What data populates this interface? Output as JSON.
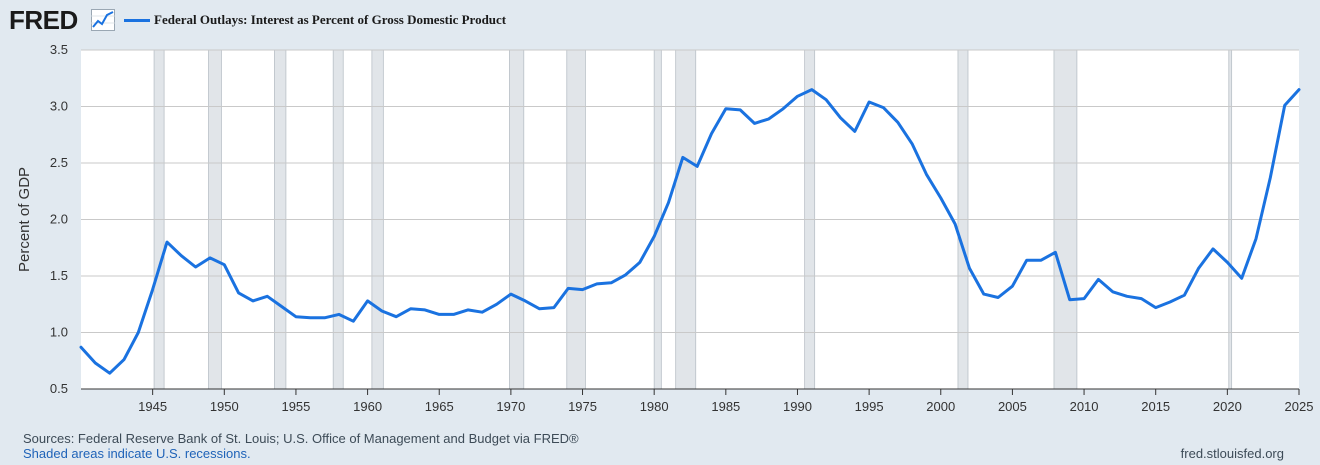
{
  "header": {
    "logo_text": "FRED",
    "logo_icon": "line-chart-icon"
  },
  "legend": {
    "label": "Federal Outlays: Interest as Percent of Gross Domestic Product",
    "color": "#1a72e0"
  },
  "footer": {
    "sources": "Sources: Federal Reserve Bank of St. Louis; U.S. Office of Management and Budget via FRED®",
    "note": "Shaded areas indicate U.S. recessions.",
    "url": "fred.stlouisfed.org"
  },
  "colors": {
    "background": "#e1e9f0",
    "plot_background": "#ffffff",
    "line": "#1a72e0",
    "recession": "#e1e5e9",
    "grid": "#c9c9c9"
  },
  "chart_data": {
    "type": "line",
    "title": "Federal Outlays: Interest as Percent of Gross Domestic Product",
    "ylabel": "Percent of GDP",
    "xlabel": "",
    "xlim": [
      1940,
      2025
    ],
    "ylim": [
      0.5,
      3.5
    ],
    "grid": true,
    "legend_position": "top-left",
    "x_ticks": [
      1945,
      1950,
      1955,
      1960,
      1965,
      1970,
      1975,
      1980,
      1985,
      1990,
      1995,
      2000,
      2005,
      2010,
      2015,
      2020,
      2025
    ],
    "y_ticks": [
      "0.5",
      "1.0",
      "1.5",
      "2.0",
      "2.5",
      "3.0",
      "3.5"
    ],
    "recessions": [
      [
        1945.1,
        1945.8
      ],
      [
        1948.9,
        1949.8
      ],
      [
        1953.5,
        1954.3
      ],
      [
        1957.6,
        1958.3
      ],
      [
        1960.3,
        1961.1
      ],
      [
        1969.9,
        1970.9
      ],
      [
        1973.9,
        1975.2
      ],
      [
        1980.0,
        1980.5
      ],
      [
        1981.5,
        1982.9
      ],
      [
        1990.5,
        1991.2
      ],
      [
        2001.2,
        2001.9
      ],
      [
        2007.9,
        2009.5
      ],
      [
        2020.1,
        2020.3
      ]
    ],
    "series": [
      {
        "name": "Federal Outlays: Interest as Percent of Gross Domestic Product",
        "x": [
          1940,
          1941,
          1942,
          1943,
          1944,
          1945,
          1946,
          1947,
          1948,
          1949,
          1950,
          1951,
          1952,
          1953,
          1954,
          1955,
          1956,
          1957,
          1958,
          1959,
          1960,
          1961,
          1962,
          1963,
          1964,
          1965,
          1966,
          1967,
          1968,
          1969,
          1970,
          1971,
          1972,
          1973,
          1974,
          1975,
          1976,
          1977,
          1978,
          1979,
          1980,
          1981,
          1982,
          1983,
          1984,
          1985,
          1986,
          1987,
          1988,
          1989,
          1990,
          1991,
          1992,
          1993,
          1994,
          1995,
          1996,
          1997,
          1998,
          1999,
          2000,
          2001,
          2002,
          2003,
          2004,
          2005,
          2006,
          2007,
          2008,
          2009,
          2010,
          2011,
          2012,
          2013,
          2014,
          2015,
          2016,
          2017,
          2018,
          2019,
          2020,
          2021,
          2022,
          2023,
          2024,
          2025
        ],
        "values": [
          0.87,
          0.73,
          0.64,
          0.76,
          1.0,
          1.38,
          1.8,
          1.68,
          1.58,
          1.66,
          1.6,
          1.35,
          1.28,
          1.32,
          1.23,
          1.14,
          1.13,
          1.13,
          1.16,
          1.1,
          1.28,
          1.19,
          1.14,
          1.21,
          1.2,
          1.16,
          1.16,
          1.2,
          1.18,
          1.25,
          1.34,
          1.28,
          1.21,
          1.22,
          1.39,
          1.38,
          1.43,
          1.44,
          1.51,
          1.62,
          1.85,
          2.15,
          2.55,
          2.47,
          2.76,
          2.98,
          2.97,
          2.85,
          2.89,
          2.98,
          3.09,
          3.15,
          3.06,
          2.9,
          2.78,
          3.04,
          2.99,
          2.86,
          2.67,
          2.4,
          2.19,
          1.96,
          1.57,
          1.34,
          1.31,
          1.41,
          1.64,
          1.64,
          1.71,
          1.29,
          1.3,
          1.47,
          1.36,
          1.32,
          1.3,
          1.22,
          1.27,
          1.33,
          1.57,
          1.74,
          1.62,
          1.48,
          1.83,
          2.37,
          3.01,
          3.15
        ]
      }
    ]
  }
}
